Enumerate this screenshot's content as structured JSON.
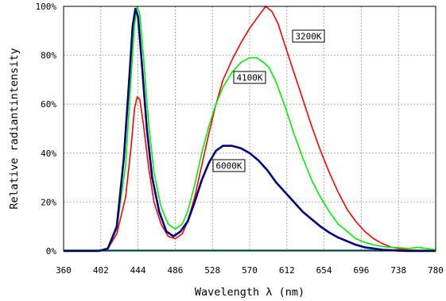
{
  "chart_data": {
    "type": "line",
    "title": "",
    "xlabel": "Wavelength λ (nm)",
    "ylabel": "Relative radiantintensity",
    "xlim": [
      360,
      780
    ],
    "ylim": [
      0,
      100
    ],
    "x_ticks": [
      360,
      402,
      444,
      486,
      528,
      570,
      612,
      654,
      696,
      738,
      780
    ],
    "x_tick_labels": [
      "360",
      "402",
      "444",
      "486",
      "528",
      "570",
      "612",
      "654",
      "696",
      "738",
      "780"
    ],
    "y_ticks": [
      0,
      20,
      40,
      60,
      80,
      100
    ],
    "y_tick_labels": [
      "0%",
      "20%",
      "40%",
      "60%",
      "80%",
      "100%"
    ],
    "grid": true,
    "series": [
      {
        "name": "3200K",
        "color": "#ff0000",
        "x": [
          360,
          400,
          410,
          420,
          430,
          436,
          440,
          443,
          446,
          450,
          456,
          462,
          470,
          478,
          486,
          494,
          500,
          508,
          516,
          524,
          532,
          540,
          550,
          560,
          570,
          580,
          588,
          595,
          602,
          610,
          620,
          630,
          640,
          650,
          660,
          670,
          680,
          690,
          700,
          710,
          720,
          730,
          740,
          750,
          760,
          770,
          780
        ],
        "y": [
          0,
          0,
          1,
          7,
          22,
          42,
          58,
          63,
          62,
          52,
          34,
          20,
          11,
          6,
          5,
          7,
          12,
          22,
          35,
          48,
          60,
          70,
          78,
          85,
          91,
          96,
          100,
          98,
          93,
          84,
          73,
          62,
          51,
          41,
          32,
          24,
          17,
          12,
          8,
          5,
          3,
          1.5,
          0.8,
          0.4,
          0.2,
          0,
          0
        ]
      },
      {
        "name": "4100K",
        "color": "#00ee00",
        "x": [
          360,
          400,
          410,
          420,
          430,
          436,
          440,
          443,
          446,
          450,
          456,
          462,
          470,
          478,
          486,
          494,
          500,
          508,
          516,
          524,
          532,
          540,
          550,
          560,
          570,
          578,
          586,
          592,
          600,
          610,
          620,
          630,
          640,
          650,
          660,
          670,
          680,
          690,
          700,
          710,
          720,
          730,
          740,
          750,
          760,
          770,
          780
        ],
        "y": [
          0,
          0,
          1,
          9,
          35,
          70,
          92,
          100,
          97,
          80,
          52,
          32,
          18,
          11,
          9,
          11,
          16,
          27,
          40,
          51,
          60,
          67,
          73,
          77,
          79,
          79,
          77,
          75,
          69,
          59,
          48,
          38,
          29,
          22,
          16,
          11,
          8,
          5,
          3.5,
          2.5,
          1.8,
          1.5,
          1.3,
          1,
          1.5,
          1,
          0.5
        ]
      },
      {
        "name": "6000K",
        "color": "#000080",
        "x": [
          360,
          400,
          410,
          420,
          428,
          434,
          438,
          441,
          444,
          448,
          454,
          460,
          468,
          476,
          484,
          492,
          500,
          508,
          516,
          524,
          532,
          540,
          550,
          560,
          570,
          580,
          590,
          600,
          610,
          620,
          630,
          640,
          650,
          660,
          670,
          680,
          690,
          700,
          710,
          720,
          730,
          740,
          750,
          760,
          780
        ],
        "y": [
          0,
          0,
          1,
          10,
          38,
          70,
          92,
          99,
          96,
          78,
          50,
          30,
          16,
          8,
          6,
          8,
          12,
          20,
          29,
          36,
          41,
          43,
          43,
          42,
          40,
          37,
          33,
          28,
          24,
          20,
          16,
          13,
          10,
          7.5,
          5.5,
          4,
          2.5,
          1.5,
          1,
          0.5,
          0.3,
          0.1,
          0,
          0,
          0
        ]
      }
    ],
    "annotations": [
      {
        "text": "3200K",
        "series": "3200K"
      },
      {
        "text": "4100K",
        "series": "4100K"
      },
      {
        "text": "6000K",
        "series": "6000K"
      }
    ]
  }
}
